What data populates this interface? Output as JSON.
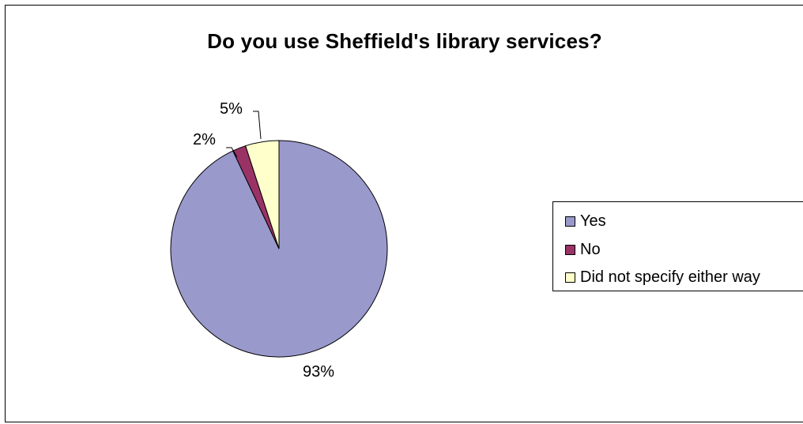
{
  "chart_data": {
    "type": "pie",
    "title": "Do you use Sheffield's library services?",
    "slices": [
      {
        "label": "Yes",
        "value": 93,
        "display": "93%",
        "color": "#9999cc"
      },
      {
        "label": "No",
        "value": 2,
        "display": "2%",
        "color": "#993366"
      },
      {
        "label": "Did not specify either way",
        "value": 5,
        "display": "5%",
        "color": "#ffffcc"
      }
    ],
    "legend_placement": "right"
  }
}
